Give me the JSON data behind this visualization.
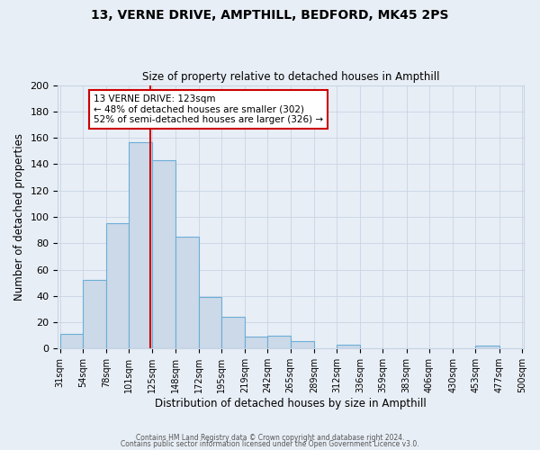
{
  "title": "13, VERNE DRIVE, AMPTHILL, BEDFORD, MK45 2PS",
  "subtitle": "Size of property relative to detached houses in Ampthill",
  "xlabel": "Distribution of detached houses by size in Ampthill",
  "ylabel": "Number of detached properties",
  "bin_edges": [
    31,
    54,
    78,
    101,
    125,
    148,
    172,
    195,
    219,
    242,
    265,
    289,
    312,
    336,
    359,
    383,
    406,
    430,
    453,
    477,
    500
  ],
  "bar_heights": [
    11,
    52,
    95,
    157,
    143,
    85,
    39,
    24,
    9,
    10,
    6,
    0,
    3,
    0,
    0,
    0,
    0,
    0,
    2,
    0
  ],
  "bar_color": "#ccd9e8",
  "bar_edge_color": "#6baed6",
  "property_size": 123,
  "vline_color": "#cc0000",
  "annotation_line1": "13 VERNE DRIVE: 123sqm",
  "annotation_line2": "← 48% of detached houses are smaller (302)",
  "annotation_line3": "52% of semi-detached houses are larger (326) →",
  "annotation_box_color": "#ffffff",
  "annotation_box_edge": "#cc0000",
  "ylim": [
    0,
    200
  ],
  "yticks": [
    0,
    20,
    40,
    60,
    80,
    100,
    120,
    140,
    160,
    180,
    200
  ],
  "grid_color": "#c8d4e4",
  "background_color": "#e8eef6",
  "footer_line1": "Contains HM Land Registry data © Crown copyright and database right 2024.",
  "footer_line2": "Contains public sector information licensed under the Open Government Licence v3.0."
}
